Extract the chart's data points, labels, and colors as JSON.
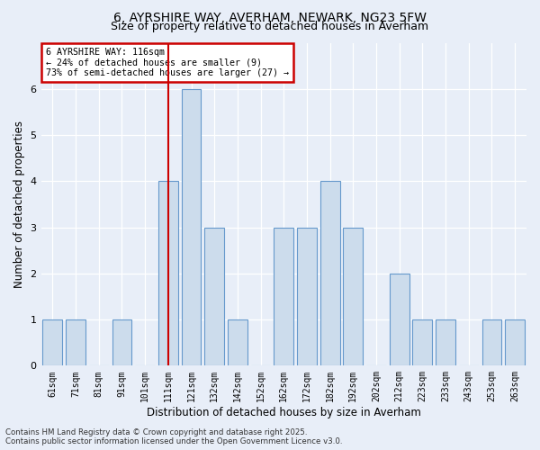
{
  "title_line1": "6, AYRSHIRE WAY, AVERHAM, NEWARK, NG23 5FW",
  "title_line2": "Size of property relative to detached houses in Averham",
  "xlabel": "Distribution of detached houses by size in Averham",
  "ylabel": "Number of detached properties",
  "annotation_line1": "6 AYRSHIRE WAY: 116sqm",
  "annotation_line2": "← 24% of detached houses are smaller (9)",
  "annotation_line3": "73% of semi-detached houses are larger (27) →",
  "footer_line1": "Contains HM Land Registry data © Crown copyright and database right 2025.",
  "footer_line2": "Contains public sector information licensed under the Open Government Licence v3.0.",
  "bins": [
    "61sqm",
    "71sqm",
    "81sqm",
    "91sqm",
    "101sqm",
    "111sqm",
    "121sqm",
    "132sqm",
    "142sqm",
    "152sqm",
    "162sqm",
    "172sqm",
    "182sqm",
    "192sqm",
    "202sqm",
    "212sqm",
    "223sqm",
    "233sqm",
    "243sqm",
    "253sqm",
    "263sqm"
  ],
  "values": [
    1,
    1,
    0,
    1,
    0,
    4,
    6,
    3,
    1,
    0,
    3,
    3,
    4,
    3,
    0,
    2,
    1,
    1,
    0,
    1,
    1
  ],
  "bar_color": "#ccdcec",
  "bar_edge_color": "#6699cc",
  "highlight_bin_index": 5,
  "highlight_color": "#cc0000",
  "ylim": [
    0,
    7
  ],
  "yticks": [
    0,
    1,
    2,
    3,
    4,
    5,
    6,
    7
  ],
  "background_color": "#e8eef8",
  "plot_bg_color": "#e8eef8",
  "annotation_box_color": "#ffffff",
  "annotation_box_edge": "#cc0000",
  "title_fontsize": 10,
  "subtitle_fontsize": 9,
  "axis_label_fontsize": 8.5,
  "tick_fontsize": 7,
  "bar_width": 0.85
}
